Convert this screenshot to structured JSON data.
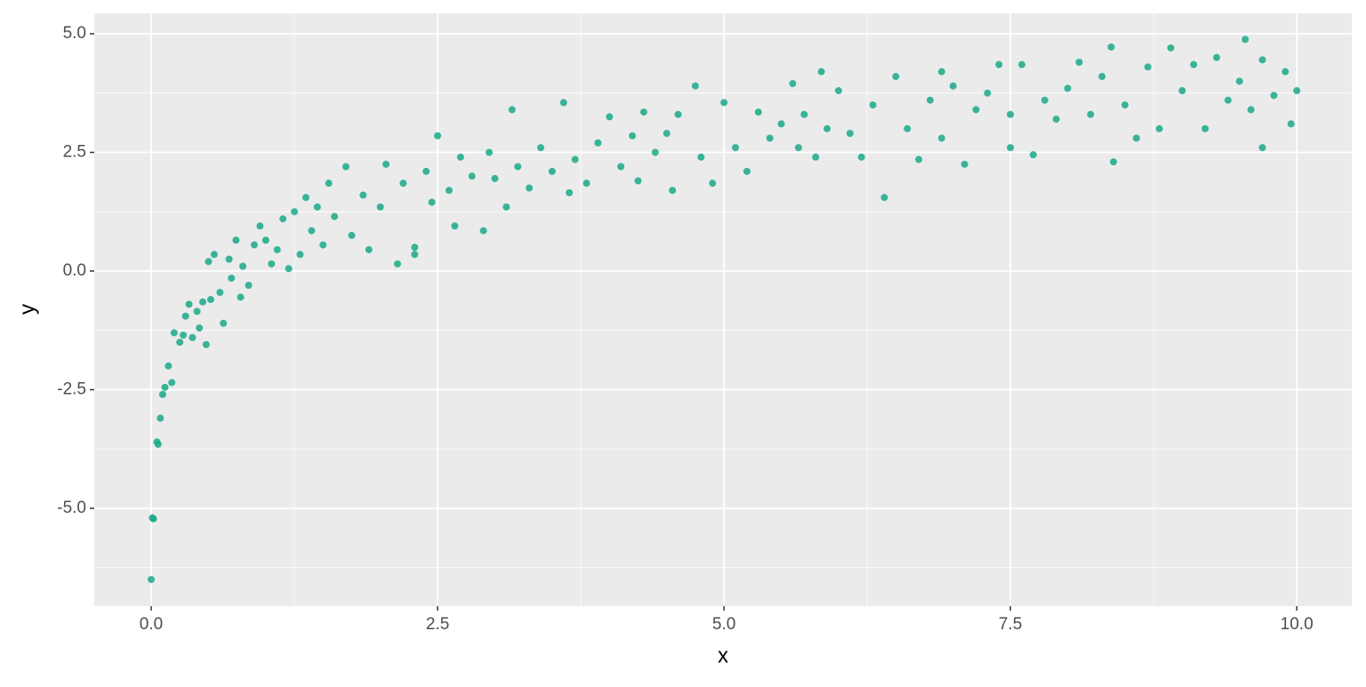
{
  "chart_data": {
    "type": "scatter",
    "x_label": "x",
    "y_label": "y",
    "x": [
      0.0,
      0.01,
      0.02,
      0.05,
      0.06,
      0.08,
      0.1,
      0.12,
      0.15,
      0.18,
      0.2,
      0.25,
      0.28,
      0.3,
      0.33,
      0.36,
      0.4,
      0.42,
      0.45,
      0.48,
      0.5,
      0.52,
      0.55,
      0.6,
      0.63,
      0.68,
      0.7,
      0.74,
      0.78,
      0.8,
      0.85,
      0.9,
      0.95,
      1.0,
      1.05,
      1.1,
      1.15,
      1.2,
      1.25,
      1.3,
      1.35,
      1.4,
      1.45,
      1.5,
      1.55,
      1.6,
      1.7,
      1.75,
      1.85,
      1.9,
      2.0,
      2.05,
      2.15,
      2.2,
      2.3,
      2.3,
      2.4,
      2.45,
      2.5,
      2.6,
      2.65,
      2.7,
      2.8,
      2.9,
      2.95,
      3.0,
      3.1,
      3.15,
      3.2,
      3.3,
      3.4,
      3.5,
      3.6,
      3.65,
      3.7,
      3.8,
      3.9,
      4.0,
      4.1,
      4.2,
      4.25,
      4.3,
      4.4,
      4.5,
      4.55,
      4.6,
      4.75,
      4.8,
      4.9,
      5.0,
      5.1,
      5.2,
      5.3,
      5.4,
      5.5,
      5.6,
      5.65,
      5.7,
      5.8,
      5.85,
      5.9,
      6.0,
      6.1,
      6.2,
      6.3,
      6.4,
      6.5,
      6.6,
      6.7,
      6.8,
      6.9,
      6.9,
      7.0,
      7.1,
      7.2,
      7.3,
      7.4,
      7.5,
      7.5,
      7.6,
      7.7,
      7.8,
      7.9,
      8.0,
      8.1,
      8.2,
      8.3,
      8.38,
      8.4,
      8.5,
      8.6,
      8.7,
      8.8,
      8.9,
      9.0,
      9.1,
      9.2,
      9.3,
      9.4,
      9.5,
      9.55,
      9.6,
      9.7,
      9.7,
      9.8,
      9.9,
      9.95,
      10.0
    ],
    "y": [
      -6.5,
      -5.2,
      -5.22,
      -3.6,
      -3.65,
      -3.1,
      -2.6,
      -2.45,
      -2.0,
      -2.35,
      -1.3,
      -1.5,
      -1.35,
      -0.95,
      -0.7,
      -1.4,
      -0.85,
      -1.2,
      -0.65,
      -1.55,
      0.2,
      -0.6,
      0.35,
      -0.45,
      -1.1,
      0.25,
      -0.15,
      0.65,
      -0.55,
      0.1,
      -0.3,
      0.55,
      0.95,
      0.65,
      0.15,
      0.45,
      1.1,
      0.05,
      1.25,
      0.35,
      1.55,
      0.85,
      1.35,
      0.55,
      1.85,
      1.15,
      2.2,
      0.75,
      1.6,
      0.45,
      1.35,
      2.25,
      0.15,
      1.85,
      0.35,
      0.5,
      2.1,
      1.45,
      2.85,
      1.7,
      0.95,
      2.4,
      2.0,
      0.85,
      2.5,
      1.95,
      1.35,
      3.4,
      2.2,
      1.75,
      2.6,
      2.1,
      3.55,
      1.65,
      2.35,
      1.85,
      2.7,
      3.25,
      2.2,
      2.85,
      1.9,
      3.35,
      2.5,
      2.9,
      1.7,
      3.3,
      3.9,
      2.4,
      1.85,
      3.55,
      2.6,
      2.1,
      3.35,
      2.8,
      3.1,
      3.95,
      2.6,
      3.3,
      2.4,
      4.2,
      3.0,
      3.8,
      2.9,
      2.4,
      3.5,
      1.55,
      4.1,
      3.0,
      2.35,
      3.6,
      4.2,
      2.8,
      3.9,
      2.25,
      3.4,
      3.75,
      4.35,
      2.6,
      3.3,
      4.35,
      2.45,
      3.6,
      3.2,
      3.85,
      4.4,
      3.3,
      4.1,
      4.72,
      2.3,
      3.5,
      2.8,
      4.3,
      3.0,
      4.7,
      3.8,
      4.35,
      3.0,
      4.5,
      3.6,
      4.0,
      4.88,
      3.4,
      2.6,
      4.45,
      3.7,
      4.2,
      3.1,
      3.8
    ],
    "color": "#1aa98a",
    "xlim": [
      -0.497,
      10.48
    ],
    "ylim": [
      -7.06,
      5.43
    ],
    "xticks": [
      {
        "value": 0,
        "label": "0.0"
      },
      {
        "value": 2.5,
        "label": "2.5"
      },
      {
        "value": 5,
        "label": "5.0"
      },
      {
        "value": 7.5,
        "label": "7.5"
      },
      {
        "value": 10,
        "label": "10.0"
      }
    ],
    "yticks": [
      {
        "value": -5,
        "label": "-5.0"
      },
      {
        "value": -2.5,
        "label": "-2.5"
      },
      {
        "value": 0,
        "label": "0.0"
      },
      {
        "value": 2.5,
        "label": "2.5"
      },
      {
        "value": 5,
        "label": "5.0"
      }
    ],
    "x_minor_grid": [
      1.25,
      3.75,
      6.25,
      8.75
    ],
    "y_minor_grid": [
      -6.25,
      -3.75,
      -1.25,
      1.25,
      3.75
    ],
    "grid": true
  }
}
